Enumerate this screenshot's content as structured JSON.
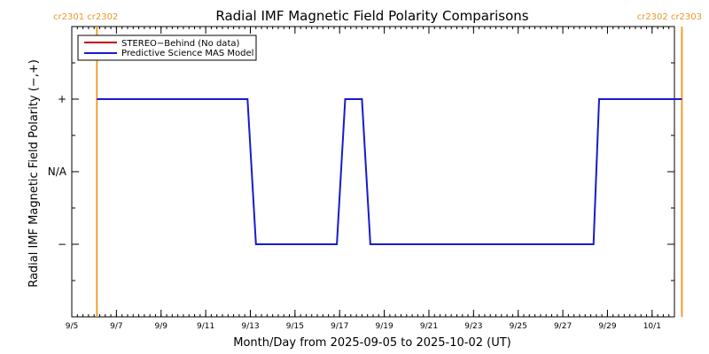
{
  "chart_data": {
    "type": "line",
    "title": "Radial IMF Magnetic Field Polarity Comparisons",
    "xlabel": "Month/Day from 2025-09-05 to 2025-10-02 (UT)",
    "ylabel": "Radial IMF Magnetic Field Polarity (−,+)",
    "x_range": [
      "2025-09-05",
      "2025-10-02"
    ],
    "x_ticks": [
      {
        "x": "2025-09-05",
        "label": "9/5"
      },
      {
        "x": "2025-09-07",
        "label": "9/7"
      },
      {
        "x": "2025-09-09",
        "label": "9/9"
      },
      {
        "x": "2025-09-11",
        "label": "9/11"
      },
      {
        "x": "2025-09-13",
        "label": "9/13"
      },
      {
        "x": "2025-09-15",
        "label": "9/15"
      },
      {
        "x": "2025-09-17",
        "label": "9/17"
      },
      {
        "x": "2025-09-19",
        "label": "9/19"
      },
      {
        "x": "2025-09-21",
        "label": "9/21"
      },
      {
        "x": "2025-09-23",
        "label": "9/23"
      },
      {
        "x": "2025-09-25",
        "label": "9/25"
      },
      {
        "x": "2025-09-27",
        "label": "9/27"
      },
      {
        "x": "2025-09-29",
        "label": "9/29"
      },
      {
        "x": "2025-10-01",
        "label": "10/1"
      }
    ],
    "y_range": [
      -2,
      2
    ],
    "y_ticks": [
      {
        "y": 1,
        "label": "+"
      },
      {
        "y": 0,
        "label": "N/A"
      },
      {
        "y": -1,
        "label": "−"
      }
    ],
    "carrington_markers": [
      {
        "x": "2025-09-06T03:00",
        "labels": [
          "cr2301",
          "cr2302"
        ],
        "side": "left"
      },
      {
        "x": "2025-10-02T08:00",
        "labels": [
          "cr2302",
          "cr2303"
        ],
        "side": "right"
      }
    ],
    "legend": {
      "position": "top-left",
      "entries": [
        {
          "name": "STEREO−Behind (No data)",
          "color": "#c00000"
        },
        {
          "name": "Predictive Science MAS Model",
          "color": "#1a1acc"
        }
      ]
    },
    "series": [
      {
        "name": "Predictive Science MAS Model",
        "color": "#1a1acc",
        "points": [
          [
            "2025-09-06T03:00",
            1
          ],
          [
            "2025-09-12T21:00",
            1
          ],
          [
            "2025-09-13T06:00",
            -1
          ],
          [
            "2025-09-16T21:00",
            -1
          ],
          [
            "2025-09-17T06:00",
            1
          ],
          [
            "2025-09-18T00:00",
            1
          ],
          [
            "2025-09-18T09:00",
            -1
          ],
          [
            "2025-09-28T09:00",
            -1
          ],
          [
            "2025-09-28T15:00",
            1
          ],
          [
            "2025-10-02T08:00",
            1
          ]
        ]
      },
      {
        "name": "STEREO−Behind (No data)",
        "color": "#c00000",
        "points": []
      }
    ],
    "colors": {
      "marker": "#f0a030",
      "axis": "#000000"
    }
  }
}
